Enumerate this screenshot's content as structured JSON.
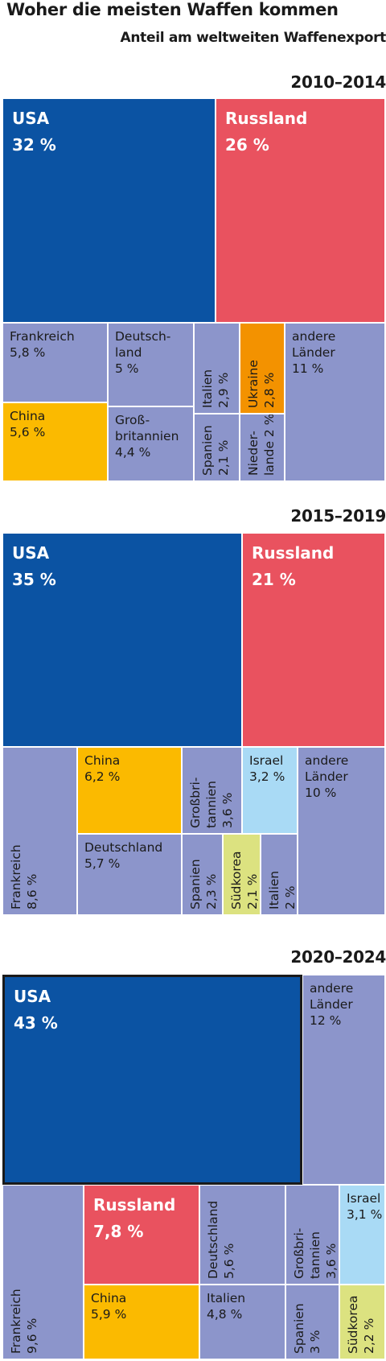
{
  "header": {
    "title": "Woher die meisten Waffen kommen",
    "subtitle": "Anteil am weltweiten Waffenexport"
  },
  "colors": {
    "USA": "#0b53a3",
    "Russland": "#e9525f",
    "China": "#fbba00",
    "Ukraine": "#f39200",
    "Israel": "#a9daf5",
    "Südkorea": "#dce280",
    "europe": "#8c95cb",
    "andere": "#dadada"
  },
  "chart_data": [
    {
      "type": "treemap",
      "period": "2010–2014",
      "unit": "%",
      "tiles": [
        {
          "name": "USA",
          "value": 32,
          "label": "USA",
          "value_label": "32 %"
        },
        {
          "name": "Russland",
          "value": 26,
          "label": "Russland",
          "value_label": "26 %"
        },
        {
          "name": "Frankreich",
          "value": 5.8,
          "label": "Frankreich",
          "value_label": "5,8 %"
        },
        {
          "name": "China",
          "value": 5.6,
          "label": "China",
          "value_label": "5,6 %"
        },
        {
          "name": "Deutschland",
          "value": 5,
          "label": "Deutsch-\nland",
          "value_label": "5 %"
        },
        {
          "name": "Großbritannien",
          "value": 4.4,
          "label": "Groß-\nbritannien",
          "value_label": "4,4 %"
        },
        {
          "name": "Italien",
          "value": 2.9,
          "label": "Italien",
          "value_label": "2,9 %"
        },
        {
          "name": "Spanien",
          "value": 2.1,
          "label": "Spanien",
          "value_label": "2,1 %"
        },
        {
          "name": "Ukraine",
          "value": 2.8,
          "label": "Ukraine",
          "value_label": "2,8 %"
        },
        {
          "name": "Niederlande",
          "value": 2,
          "label": "Nieder-\nlande 2 %",
          "value_label": ""
        },
        {
          "name": "andere Länder",
          "value": 11,
          "label": "andere\nLänder",
          "value_label": "11 %"
        }
      ]
    },
    {
      "type": "treemap",
      "period": "2015–2019",
      "unit": "%",
      "tiles": [
        {
          "name": "USA",
          "value": 35,
          "label": "USA",
          "value_label": "35 %"
        },
        {
          "name": "Russland",
          "value": 21,
          "label": "Russland",
          "value_label": "21 %"
        },
        {
          "name": "Frankreich",
          "value": 8.6,
          "label": "Frankreich",
          "value_label": "8,6 %"
        },
        {
          "name": "China",
          "value": 6.2,
          "label": "China",
          "value_label": "6,2 %"
        },
        {
          "name": "Deutschland",
          "value": 5.7,
          "label": "Deutschland",
          "value_label": "5,7 %"
        },
        {
          "name": "Großbritannien",
          "value": 3.6,
          "label": "Großbri-\ntannien",
          "value_label": "3,6 %"
        },
        {
          "name": "Spanien",
          "value": 2.3,
          "label": "Spanien",
          "value_label": "2,3 %"
        },
        {
          "name": "Israel",
          "value": 3.2,
          "label": "Israel",
          "value_label": "3,2 %"
        },
        {
          "name": "Südkorea",
          "value": 2.1,
          "label": "Südkorea",
          "value_label": "2,1 %"
        },
        {
          "name": "Italien",
          "value": 2,
          "label": "Italien",
          "value_label": "2 %"
        },
        {
          "name": "andere Länder",
          "value": 10,
          "label": "andere\nLänder",
          "value_label": "10 %"
        }
      ]
    },
    {
      "type": "treemap",
      "period": "2020–2024",
      "unit": "%",
      "tiles": [
        {
          "name": "USA",
          "value": 43,
          "label": "USA",
          "value_label": "43 %",
          "highlight": true
        },
        {
          "name": "andere Länder",
          "value": 12,
          "label": "andere\nLänder",
          "value_label": "12 %"
        },
        {
          "name": "Frankreich",
          "value": 9.6,
          "label": "Frankreich",
          "value_label": "9,6 %"
        },
        {
          "name": "Russland",
          "value": 7.8,
          "label": "Russland",
          "value_label": "7,8 %"
        },
        {
          "name": "China",
          "value": 5.9,
          "label": "China",
          "value_label": "5,9 %"
        },
        {
          "name": "Deutschland",
          "value": 5.6,
          "label": "Deutschland",
          "value_label": "5,6 %"
        },
        {
          "name": "Italien",
          "value": 4.8,
          "label": "Italien",
          "value_label": "4,8 %"
        },
        {
          "name": "Großbritannien",
          "value": 3.6,
          "label": "Großbri-\ntannien",
          "value_label": "3,6 %"
        },
        {
          "name": "Spanien",
          "value": 3,
          "label": "Spanien",
          "value_label": "3 %"
        },
        {
          "name": "Israel",
          "value": 3.1,
          "label": "Israel",
          "value_label": "3,1 %"
        },
        {
          "name": "Südkorea",
          "value": 2.2,
          "label": "Südkorea",
          "value_label": "2,2 %"
        }
      ]
    }
  ]
}
